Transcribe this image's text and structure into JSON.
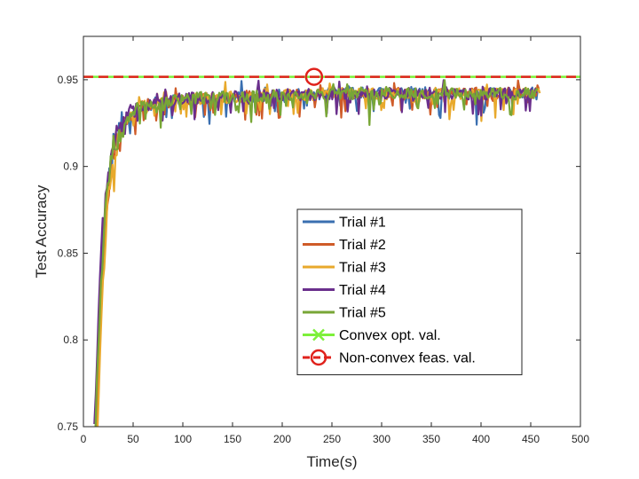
{
  "chart_data": {
    "type": "line",
    "title": "",
    "xlabel": "Time(s)",
    "ylabel": "Test Accuracy",
    "xlim": [
      0,
      500
    ],
    "ylim": [
      0.75,
      0.975
    ],
    "xticks": [
      0,
      50,
      100,
      150,
      200,
      250,
      300,
      350,
      400,
      450,
      500
    ],
    "xtick_labels": [
      "0",
      "50",
      "100",
      "150",
      "200",
      "250",
      "300",
      "350",
      "400",
      "450",
      "500"
    ],
    "yticks": [
      0.75,
      0.8,
      0.85,
      0.9,
      0.95
    ],
    "ytick_labels": [
      "0.75",
      "0.8",
      "0.85",
      "0.9",
      "0.95"
    ],
    "grid": false,
    "legend_position": "center-right",
    "series": [
      {
        "name": "Trial #1",
        "color": "#3a6fb0",
        "start": 12,
        "end": 458,
        "seed": 11,
        "x": [
          12,
          15,
          20,
          25,
          30,
          40,
          50,
          60,
          80,
          100,
          150,
          200,
          250,
          300,
          350,
          400,
          458
        ],
        "y": [
          0.75,
          0.8,
          0.86,
          0.895,
          0.912,
          0.925,
          0.932,
          0.935,
          0.937,
          0.939,
          0.94,
          0.941,
          0.942,
          0.942,
          0.942,
          0.942,
          0.942
        ]
      },
      {
        "name": "Trial #2",
        "color": "#cf5b28",
        "start": 13,
        "end": 459,
        "seed": 23,
        "x": [
          13,
          16,
          21,
          26,
          31,
          41,
          51,
          61,
          81,
          101,
          151,
          201,
          251,
          301,
          351,
          401,
          459
        ],
        "y": [
          0.75,
          0.8,
          0.86,
          0.895,
          0.912,
          0.925,
          0.932,
          0.935,
          0.937,
          0.939,
          0.94,
          0.941,
          0.942,
          0.942,
          0.942,
          0.942,
          0.942
        ]
      },
      {
        "name": "Trial #3",
        "color": "#e8a92c",
        "start": 14,
        "end": 460,
        "seed": 37,
        "x": [
          14,
          17,
          22,
          27,
          32,
          42,
          52,
          62,
          82,
          102,
          152,
          202,
          252,
          302,
          352,
          402,
          460
        ],
        "y": [
          0.75,
          0.8,
          0.86,
          0.895,
          0.912,
          0.925,
          0.932,
          0.935,
          0.937,
          0.939,
          0.94,
          0.941,
          0.942,
          0.942,
          0.942,
          0.942,
          0.942
        ]
      },
      {
        "name": "Trial #4",
        "color": "#6a2f8c",
        "start": 11,
        "end": 457,
        "seed": 41,
        "x": [
          11,
          14,
          19,
          24,
          29,
          39,
          49,
          59,
          79,
          99,
          149,
          199,
          249,
          299,
          349,
          399,
          457
        ],
        "y": [
          0.75,
          0.8,
          0.86,
          0.895,
          0.912,
          0.925,
          0.932,
          0.935,
          0.937,
          0.939,
          0.94,
          0.941,
          0.942,
          0.942,
          0.942,
          0.942,
          0.942
        ]
      },
      {
        "name": "Trial #5",
        "color": "#78a636",
        "start": 12,
        "end": 458,
        "seed": 53,
        "x": [
          12,
          15,
          20,
          25,
          30,
          40,
          50,
          60,
          80,
          100,
          150,
          200,
          250,
          300,
          350,
          400,
          458
        ],
        "y": [
          0.75,
          0.8,
          0.86,
          0.895,
          0.912,
          0.925,
          0.932,
          0.935,
          0.937,
          0.939,
          0.94,
          0.941,
          0.942,
          0.942,
          0.942,
          0.942,
          0.942
        ]
      }
    ],
    "reference_lines": [
      {
        "name": "Convex opt. val.",
        "color": "#7df03a",
        "y": 0.9517,
        "marker": "x"
      },
      {
        "name": "Non-convex feas. val.",
        "color": "#e0221c",
        "y": 0.9517,
        "marker": "o",
        "marker_x": 232
      }
    ]
  }
}
